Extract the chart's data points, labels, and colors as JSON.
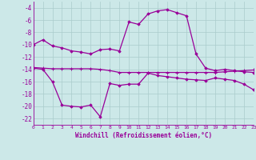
{
  "xlabel": "Windchill (Refroidissement éolien,°C)",
  "background_color": "#cce8e8",
  "grid_color": "#aacccc",
  "line_color": "#990099",
  "x": [
    0,
    1,
    2,
    3,
    4,
    5,
    6,
    7,
    8,
    9,
    10,
    11,
    12,
    13,
    14,
    15,
    16,
    17,
    18,
    19,
    20,
    21,
    22,
    23
  ],
  "line1": [
    -10,
    -9.2,
    -10.2,
    -10.5,
    -11.0,
    -11.2,
    -11.5,
    -10.8,
    -10.7,
    -11.0,
    -6.3,
    -6.7,
    -5.0,
    -4.5,
    -4.3,
    -4.8,
    -5.3,
    -11.5,
    -13.8,
    -14.2,
    -14.0,
    -14.2,
    -14.4,
    -14.5
  ],
  "line2": [
    -13.7,
    -13.8,
    -13.9,
    -13.9,
    -13.9,
    -13.9,
    -13.9,
    -14.0,
    -14.2,
    -14.5,
    -14.5,
    -14.5,
    -14.5,
    -14.5,
    -14.5,
    -14.5,
    -14.5,
    -14.5,
    -14.5,
    -14.5,
    -14.4,
    -14.3,
    -14.2,
    -14.1
  ],
  "line3": [
    -13.8,
    -14.0,
    -16.0,
    -19.8,
    -20.0,
    -20.1,
    -19.8,
    -21.7,
    -16.3,
    -16.6,
    -16.4,
    -16.4,
    -14.6,
    -15.0,
    -15.2,
    -15.4,
    -15.6,
    -15.7,
    -15.8,
    -15.4,
    -15.6,
    -15.8,
    -16.4,
    -17.3
  ],
  "ylim": [
    -23,
    -3
  ],
  "yticks": [
    -22,
    -20,
    -18,
    -16,
    -14,
    -12,
    -10,
    -8,
    -6,
    -4
  ],
  "xlim": [
    0,
    23
  ],
  "xtick_fontsize": 4.5,
  "ytick_fontsize": 5.5,
  "xlabel_fontsize": 5.5
}
